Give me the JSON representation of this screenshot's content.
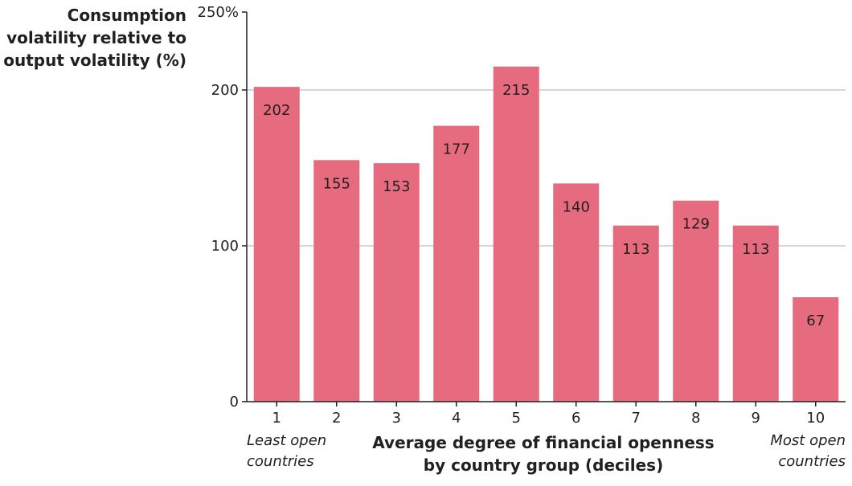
{
  "chart_data": {
    "type": "bar",
    "title": "",
    "ylabel": [
      "Consumption",
      "volatility relative to",
      "output volatility (%)"
    ],
    "xlabel": [
      "Average degree of financial openness",
      "by country group (deciles)"
    ],
    "categories": [
      "1",
      "2",
      "3",
      "4",
      "5",
      "6",
      "7",
      "8",
      "9",
      "10"
    ],
    "values": [
      202,
      155,
      153,
      177,
      215,
      140,
      113,
      129,
      113,
      67
    ],
    "ylim": [
      0,
      250
    ],
    "yticks": [
      0,
      100,
      200,
      250
    ],
    "ytick_labels": [
      "0",
      "100",
      "200",
      "250%"
    ],
    "gridlines": [
      100,
      200
    ],
    "left_note": [
      "Least open",
      "countries"
    ],
    "right_note": [
      "Most open",
      "countries"
    ],
    "bar_color": "#e66b7f",
    "axis_color": "#231f20",
    "grid_color": "#c8c8c8"
  }
}
